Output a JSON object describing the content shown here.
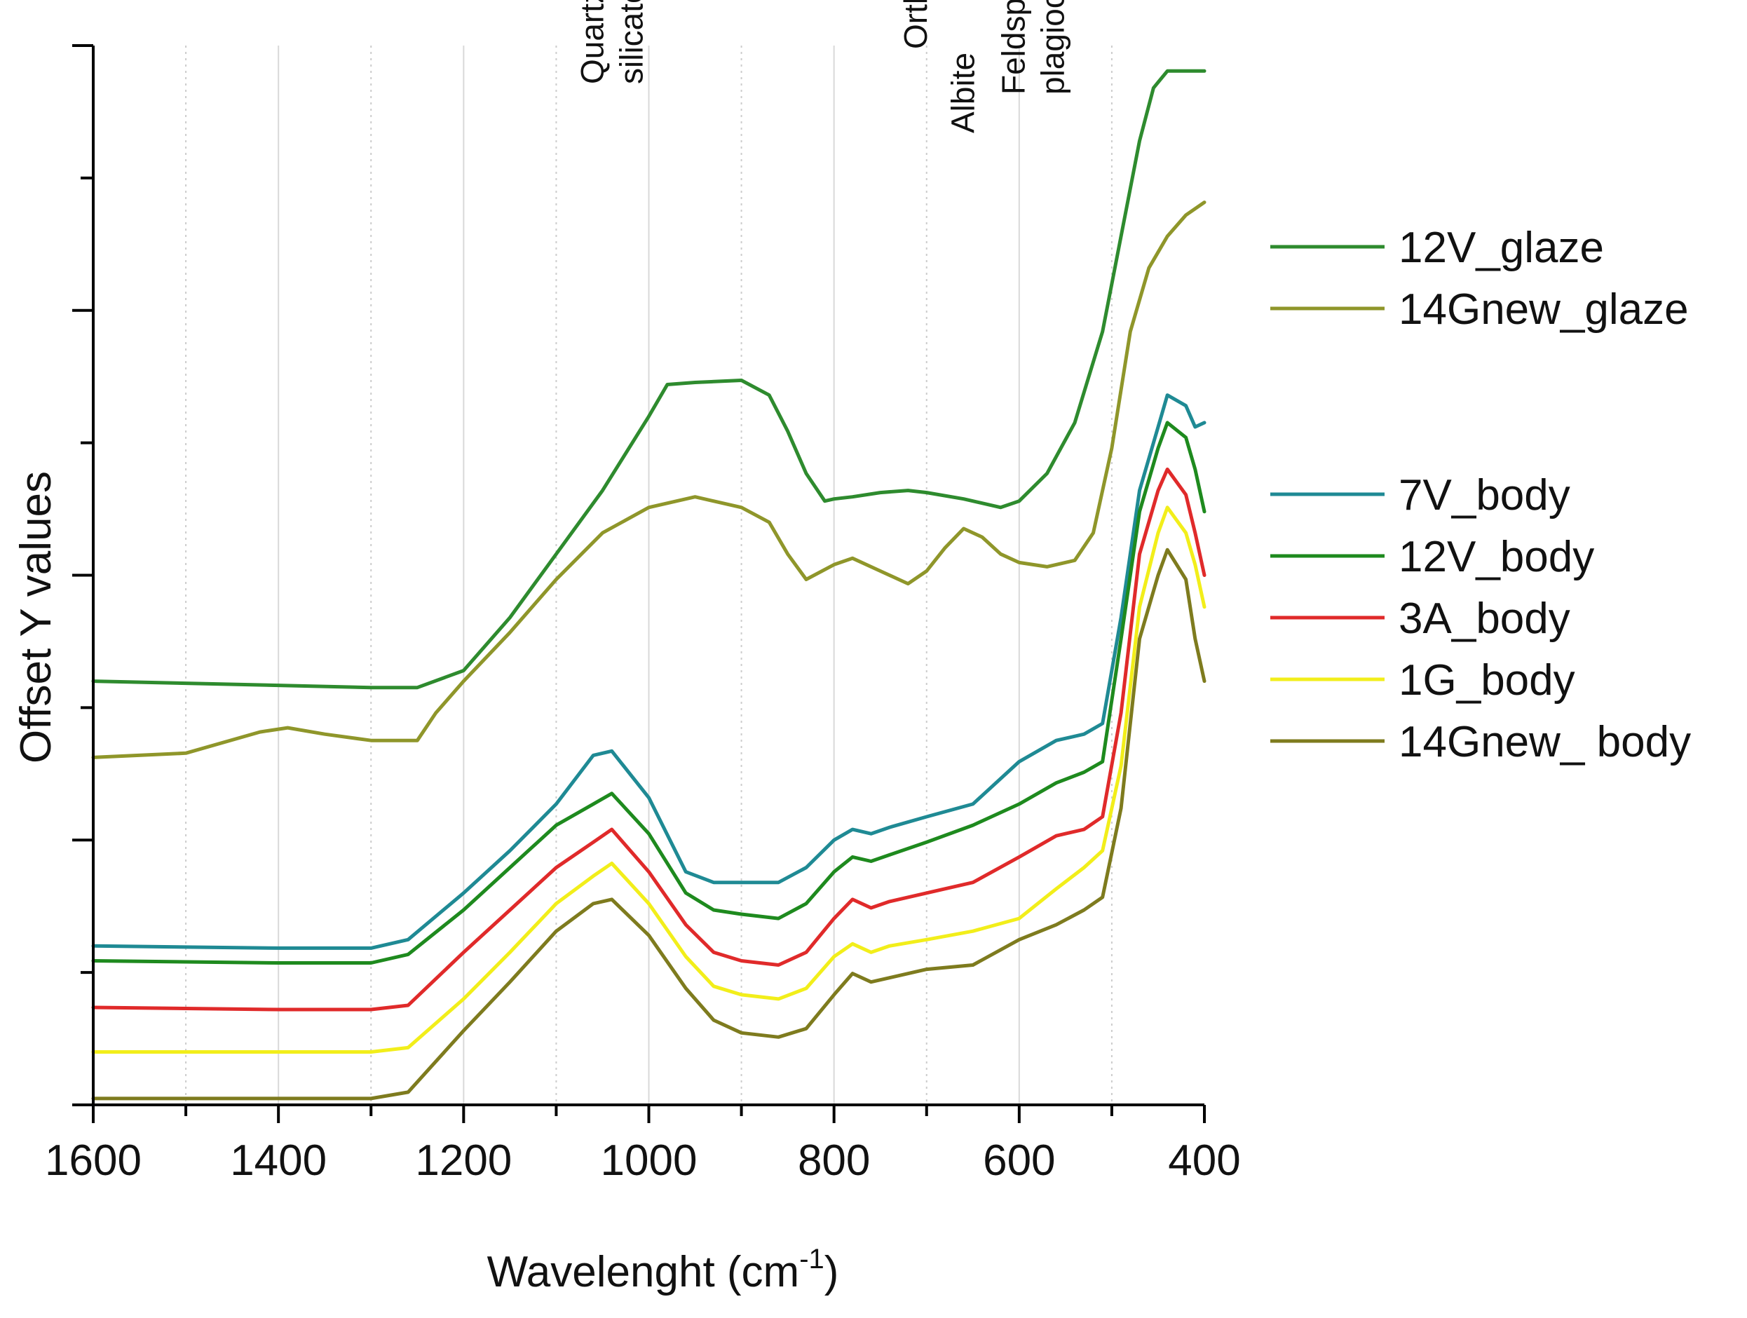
{
  "chart_data": {
    "type": "line",
    "title": "",
    "xlabel": "Wavelenght (cm",
    "xlabel_superscript": "-1",
    "xlabel_suffix": ")",
    "ylabel": "Offset Y values",
    "xlim": [
      1600,
      400
    ],
    "x_reversed": true,
    "x_ticks": [
      1600,
      1400,
      1200,
      1000,
      800,
      600,
      400
    ],
    "x_tick_labels": [
      "1600",
      "1400",
      "1200",
      "1000",
      "800",
      "600",
      "400"
    ],
    "y_tick_labels_shown": false,
    "grid": {
      "vertical_solid_at": [
        1400,
        1200,
        1000,
        800,
        600
      ],
      "vertical_dotted_at": [
        1500,
        1300,
        1100,
        900,
        700,
        500
      ]
    },
    "annotations": [
      {
        "lines": [
          "Quartz,",
          "silicates"
        ],
        "x": 1040
      },
      {
        "lines": [
          "Orthoclase"
        ],
        "x": 712
      },
      {
        "lines": [
          "Albite"
        ],
        "x": 661
      },
      {
        "lines": [
          "Feldspar,",
          "plagioclase"
        ],
        "x": 585
      }
    ],
    "legend_position": "right",
    "series": [
      {
        "name": "12V_glaze",
        "color": "#2e8b2e",
        "points": [
          [
            1600,
            2.0
          ],
          [
            1500,
            1.99
          ],
          [
            1400,
            1.98
          ],
          [
            1300,
            1.97
          ],
          [
            1250,
            1.97
          ],
          [
            1200,
            2.05
          ],
          [
            1150,
            2.3
          ],
          [
            1100,
            2.6
          ],
          [
            1050,
            2.9
          ],
          [
            1000,
            3.25
          ],
          [
            980,
            3.4
          ],
          [
            950,
            3.41
          ],
          [
            900,
            3.42
          ],
          [
            870,
            3.35
          ],
          [
            850,
            3.18
          ],
          [
            830,
            2.98
          ],
          [
            810,
            2.85
          ],
          [
            800,
            2.86
          ],
          [
            780,
            2.87
          ],
          [
            750,
            2.89
          ],
          [
            720,
            2.9
          ],
          [
            700,
            2.89
          ],
          [
            660,
            2.86
          ],
          [
            620,
            2.82
          ],
          [
            600,
            2.85
          ],
          [
            570,
            2.98
          ],
          [
            540,
            3.22
          ],
          [
            510,
            3.65
          ],
          [
            490,
            4.1
          ],
          [
            470,
            4.55
          ],
          [
            455,
            4.8
          ],
          [
            440,
            4.88
          ],
          [
            420,
            4.88
          ],
          [
            400,
            4.88
          ]
        ]
      },
      {
        "name": "14Gnew_glaze",
        "color": "#8f962a",
        "points": [
          [
            1600,
            1.64
          ],
          [
            1500,
            1.66
          ],
          [
            1420,
            1.76
          ],
          [
            1390,
            1.78
          ],
          [
            1350,
            1.75
          ],
          [
            1300,
            1.72
          ],
          [
            1250,
            1.72
          ],
          [
            1230,
            1.85
          ],
          [
            1200,
            2.0
          ],
          [
            1150,
            2.23
          ],
          [
            1100,
            2.48
          ],
          [
            1050,
            2.7
          ],
          [
            1000,
            2.82
          ],
          [
            950,
            2.87
          ],
          [
            900,
            2.82
          ],
          [
            870,
            2.75
          ],
          [
            850,
            2.6
          ],
          [
            830,
            2.48
          ],
          [
            800,
            2.55
          ],
          [
            780,
            2.58
          ],
          [
            750,
            2.52
          ],
          [
            720,
            2.46
          ],
          [
            700,
            2.52
          ],
          [
            680,
            2.63
          ],
          [
            660,
            2.72
          ],
          [
            640,
            2.68
          ],
          [
            620,
            2.6
          ],
          [
            600,
            2.56
          ],
          [
            570,
            2.54
          ],
          [
            540,
            2.57
          ],
          [
            520,
            2.7
          ],
          [
            500,
            3.1
          ],
          [
            480,
            3.65
          ],
          [
            460,
            3.95
          ],
          [
            440,
            4.1
          ],
          [
            420,
            4.2
          ],
          [
            400,
            4.26
          ]
        ]
      },
      {
        "name": "7V_body",
        "color": "#1f8a94",
        "points": [
          [
            1600,
            0.75
          ],
          [
            1400,
            0.74
          ],
          [
            1300,
            0.74
          ],
          [
            1260,
            0.78
          ],
          [
            1200,
            1.0
          ],
          [
            1150,
            1.2
          ],
          [
            1100,
            1.42
          ],
          [
            1060,
            1.65
          ],
          [
            1040,
            1.67
          ],
          [
            1000,
            1.45
          ],
          [
            960,
            1.1
          ],
          [
            930,
            1.05
          ],
          [
            900,
            1.05
          ],
          [
            860,
            1.05
          ],
          [
            830,
            1.12
          ],
          [
            800,
            1.25
          ],
          [
            780,
            1.3
          ],
          [
            760,
            1.28
          ],
          [
            740,
            1.31
          ],
          [
            700,
            1.36
          ],
          [
            650,
            1.42
          ],
          [
            600,
            1.62
          ],
          [
            560,
            1.72
          ],
          [
            530,
            1.75
          ],
          [
            510,
            1.8
          ],
          [
            490,
            2.3
          ],
          [
            470,
            2.9
          ],
          [
            450,
            3.2
          ],
          [
            440,
            3.35
          ],
          [
            420,
            3.3
          ],
          [
            410,
            3.2
          ],
          [
            400,
            3.22
          ]
        ]
      },
      {
        "name": "12V_body",
        "color": "#1e8a1e",
        "points": [
          [
            1600,
            0.68
          ],
          [
            1400,
            0.67
          ],
          [
            1300,
            0.67
          ],
          [
            1260,
            0.71
          ],
          [
            1200,
            0.92
          ],
          [
            1150,
            1.12
          ],
          [
            1100,
            1.32
          ],
          [
            1060,
            1.42
          ],
          [
            1040,
            1.47
          ],
          [
            1000,
            1.28
          ],
          [
            960,
            1.0
          ],
          [
            930,
            0.92
          ],
          [
            900,
            0.9
          ],
          [
            860,
            0.88
          ],
          [
            830,
            0.95
          ],
          [
            800,
            1.1
          ],
          [
            780,
            1.17
          ],
          [
            760,
            1.15
          ],
          [
            740,
            1.18
          ],
          [
            700,
            1.24
          ],
          [
            650,
            1.32
          ],
          [
            600,
            1.42
          ],
          [
            560,
            1.52
          ],
          [
            530,
            1.57
          ],
          [
            510,
            1.62
          ],
          [
            490,
            2.2
          ],
          [
            470,
            2.8
          ],
          [
            450,
            3.1
          ],
          [
            440,
            3.22
          ],
          [
            420,
            3.15
          ],
          [
            410,
            3.0
          ],
          [
            400,
            2.8
          ]
        ]
      },
      {
        "name": "3A_body",
        "color": "#e02a2a",
        "points": [
          [
            1600,
            0.46
          ],
          [
            1400,
            0.45
          ],
          [
            1300,
            0.45
          ],
          [
            1260,
            0.47
          ],
          [
            1200,
            0.72
          ],
          [
            1150,
            0.92
          ],
          [
            1100,
            1.12
          ],
          [
            1060,
            1.24
          ],
          [
            1040,
            1.3
          ],
          [
            1000,
            1.1
          ],
          [
            960,
            0.85
          ],
          [
            930,
            0.72
          ],
          [
            900,
            0.68
          ],
          [
            860,
            0.66
          ],
          [
            830,
            0.72
          ],
          [
            800,
            0.88
          ],
          [
            780,
            0.97
          ],
          [
            760,
            0.93
          ],
          [
            740,
            0.96
          ],
          [
            700,
            1.0
          ],
          [
            650,
            1.05
          ],
          [
            600,
            1.17
          ],
          [
            560,
            1.27
          ],
          [
            530,
            1.3
          ],
          [
            510,
            1.36
          ],
          [
            490,
            1.85
          ],
          [
            470,
            2.6
          ],
          [
            450,
            2.9
          ],
          [
            440,
            3.0
          ],
          [
            420,
            2.88
          ],
          [
            410,
            2.7
          ],
          [
            400,
            2.5
          ]
        ]
      },
      {
        "name": "1G_body",
        "color": "#f2ee1a",
        "points": [
          [
            1600,
            0.25
          ],
          [
            1400,
            0.25
          ],
          [
            1300,
            0.25
          ],
          [
            1260,
            0.27
          ],
          [
            1200,
            0.5
          ],
          [
            1150,
            0.72
          ],
          [
            1100,
            0.95
          ],
          [
            1060,
            1.08
          ],
          [
            1040,
            1.14
          ],
          [
            1000,
            0.95
          ],
          [
            960,
            0.7
          ],
          [
            930,
            0.56
          ],
          [
            900,
            0.52
          ],
          [
            860,
            0.5
          ],
          [
            830,
            0.55
          ],
          [
            800,
            0.7
          ],
          [
            780,
            0.76
          ],
          [
            760,
            0.72
          ],
          [
            740,
            0.75
          ],
          [
            700,
            0.78
          ],
          [
            650,
            0.82
          ],
          [
            600,
            0.88
          ],
          [
            560,
            1.02
          ],
          [
            530,
            1.12
          ],
          [
            510,
            1.2
          ],
          [
            490,
            1.6
          ],
          [
            470,
            2.35
          ],
          [
            450,
            2.7
          ],
          [
            440,
            2.82
          ],
          [
            420,
            2.7
          ],
          [
            410,
            2.55
          ],
          [
            400,
            2.35
          ]
        ]
      },
      {
        "name": "14Gnew_ body",
        "color": "#7e7b1e",
        "points": [
          [
            1600,
            0.03
          ],
          [
            1400,
            0.03
          ],
          [
            1300,
            0.03
          ],
          [
            1260,
            0.06
          ],
          [
            1200,
            0.35
          ],
          [
            1150,
            0.58
          ],
          [
            1100,
            0.82
          ],
          [
            1060,
            0.95
          ],
          [
            1040,
            0.97
          ],
          [
            1000,
            0.8
          ],
          [
            960,
            0.55
          ],
          [
            930,
            0.4
          ],
          [
            900,
            0.34
          ],
          [
            860,
            0.32
          ],
          [
            830,
            0.36
          ],
          [
            800,
            0.52
          ],
          [
            780,
            0.62
          ],
          [
            760,
            0.58
          ],
          [
            740,
            0.6
          ],
          [
            700,
            0.64
          ],
          [
            650,
            0.66
          ],
          [
            600,
            0.78
          ],
          [
            560,
            0.85
          ],
          [
            530,
            0.92
          ],
          [
            510,
            0.98
          ],
          [
            490,
            1.4
          ],
          [
            470,
            2.2
          ],
          [
            450,
            2.5
          ],
          [
            440,
            2.62
          ],
          [
            420,
            2.48
          ],
          [
            410,
            2.2
          ],
          [
            400,
            2.0
          ]
        ]
      }
    ]
  }
}
